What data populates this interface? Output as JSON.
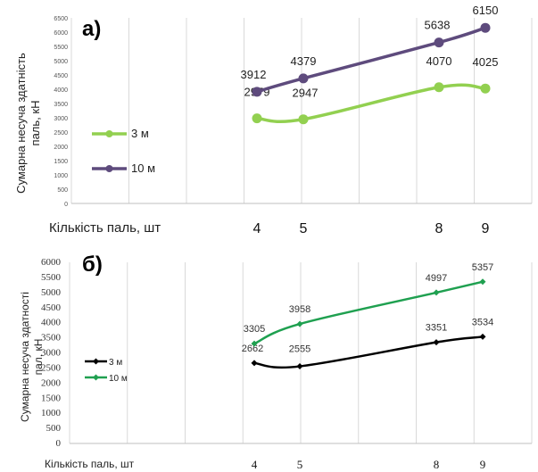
{
  "chart_data": [
    {
      "panel_label": "а)",
      "type": "line",
      "categories": [
        "4",
        "5",
        "8",
        "9"
      ],
      "series": [
        {
          "name": "3 м",
          "values": [
            2979,
            2947,
            4070,
            4025
          ],
          "color": "#92d050"
        },
        {
          "name": "10 м",
          "values": [
            3912,
            4379,
            5638,
            6150
          ],
          "color": "#5e4b7d"
        }
      ],
      "xlabel": "Кількість паль, шт",
      "ylabel": [
        "Сумарна несуча здатність",
        "паль, кН"
      ],
      "ylim": [
        0,
        6500
      ],
      "yticks": [
        "0",
        "500",
        "1000",
        "1500",
        "2000",
        "2500",
        "3000",
        "3500",
        "4000",
        "4500",
        "5000",
        "5500",
        "6000",
        "6500"
      ],
      "grid": "vertical",
      "legend_position": "left"
    },
    {
      "panel_label": "б)",
      "type": "line",
      "categories": [
        "4",
        "5",
        "8",
        "9"
      ],
      "series": [
        {
          "name": "3 м",
          "values": [
            2662,
            2555,
            3351,
            3534
          ],
          "color": "#000000"
        },
        {
          "name": "10 м",
          "values": [
            3305,
            3958,
            4997,
            5357
          ],
          "color": "#1fa050"
        }
      ],
      "xlabel": "Кількість паль, шт",
      "ylabel": [
        "Сумарна несуча здатності",
        "пал, кН"
      ],
      "ylim": [
        0,
        6000
      ],
      "yticks": [
        "0",
        "500",
        "1000",
        "1500",
        "2000",
        "2500",
        "3000",
        "3500",
        "4000",
        "4500",
        "5000",
        "5500",
        "6000"
      ],
      "grid": "vertical",
      "legend_position": "left"
    }
  ]
}
